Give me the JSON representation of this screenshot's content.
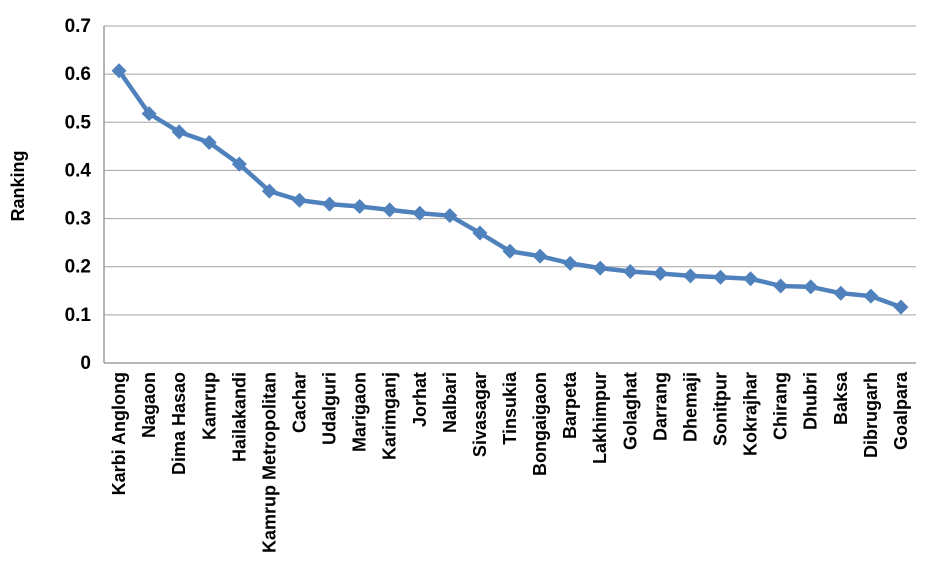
{
  "chart_data": {
    "type": "line",
    "title": "",
    "xlabel": "",
    "ylabel": "Ranking",
    "legend": "none",
    "grid": "horizontal",
    "marker": "diamond",
    "ylim": [
      0,
      0.7
    ],
    "yticks": [
      "0",
      "0.1",
      "0.2",
      "0.3",
      "0.4",
      "0.5",
      "0.6",
      "0.7"
    ],
    "categories": [
      "Karbi Anglong",
      "Nagaon",
      "Dima Hasao",
      "Kamrup",
      "Hailakandi",
      "Kamrup Metropolitan",
      "Cachar",
      "Udalguri",
      "Marigaon",
      "Karimganj",
      "Jorhat",
      "Nalbari",
      "Sivasagar",
      "Tinsukia",
      "Bongaigaon",
      "Barpeta",
      "Lakhimpur",
      "Golaghat",
      "Darrang",
      "Dhemaji",
      "Sonitpur",
      "Kokrajhar",
      "Chirang",
      "Dhubri",
      "Baksa",
      "Dibrugarh",
      "Goalpara"
    ],
    "series": [
      {
        "name": "Ranking",
        "values": [
          0.607,
          0.518,
          0.48,
          0.458,
          0.413,
          0.357,
          0.338,
          0.33,
          0.325,
          0.318,
          0.311,
          0.306,
          0.27,
          0.232,
          0.222,
          0.207,
          0.197,
          0.19,
          0.186,
          0.181,
          0.178,
          0.175,
          0.16,
          0.158,
          0.145,
          0.139,
          0.116
        ]
      }
    ],
    "colors": {
      "series": "#4F81BD",
      "gridline": "#A3A3A3",
      "axis": "#8C8C8C",
      "text": "#000000",
      "background": "#FFFFFF"
    }
  }
}
